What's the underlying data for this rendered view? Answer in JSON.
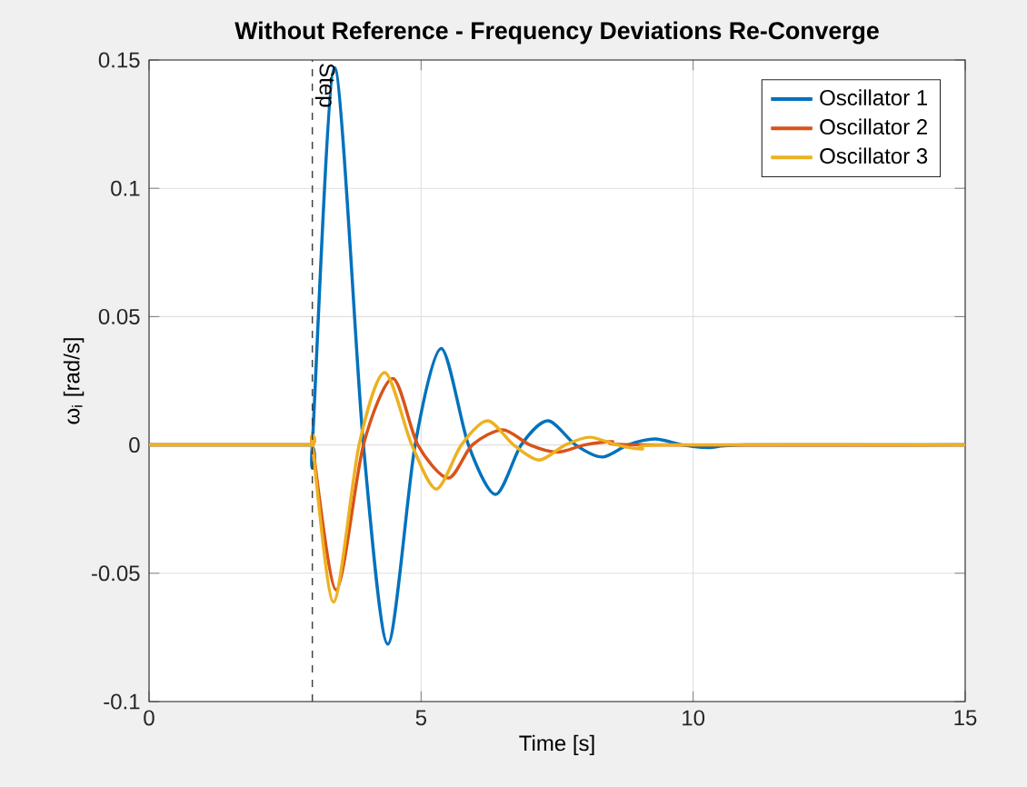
{
  "chart_data": {
    "type": "line",
    "title": "Without Reference - Frequency Deviations Re-Converge",
    "xlabel": "Time [s]",
    "ylabel": "ω$_{i}$ [rad/s]",
    "xlim": [
      0,
      15
    ],
    "ylim": [
      -0.1,
      0.15
    ],
    "xticks": [
      0,
      5,
      10,
      15
    ],
    "yticks": [
      -0.1,
      -0.05,
      0,
      0.05,
      0.1,
      0.15
    ],
    "grid": true,
    "legend": "top right",
    "marker": "none",
    "line_style": "solid",
    "ref_lines": [
      {
        "axis": "x",
        "value": 3,
        "label": "Step",
        "color": "#404040",
        "line_style": "dashed"
      }
    ],
    "series": [
      {
        "name": "Oscillator 1",
        "color": "#0072bd",
        "x": [
          0,
          1.5,
          2.95,
          3,
          3.41,
          3.94,
          4.39,
          4.89,
          5.37,
          5.87,
          6.37,
          6.84,
          7.33,
          7.84,
          8.33,
          8.8,
          9.3,
          9.8,
          10.3,
          11,
          15
        ],
        "values": [
          0,
          0,
          0,
          0,
          0.147,
          0,
          -0.0776,
          0,
          0.0376,
          0,
          -0.0193,
          0,
          0.0094,
          0,
          -0.0047,
          0,
          0.0023,
          0,
          -0.001,
          0,
          0
        ]
      },
      {
        "name": "Oscillator 2",
        "color": "#d95319",
        "x": [
          0,
          1.5,
          2.95,
          3,
          3.44,
          3.94,
          4.48,
          4.94,
          5.5,
          5.94,
          6.5,
          7.0,
          7.5,
          8.0,
          8.5,
          9.0,
          15
        ],
        "values": [
          0,
          0,
          0,
          0,
          -0.0565,
          0,
          0.0259,
          0,
          -0.0129,
          0,
          0.0059,
          0,
          -0.0028,
          0,
          0.0013,
          0,
          0
        ]
      },
      {
        "name": "Oscillator 3",
        "color": "#edb120",
        "x": [
          0,
          1.5,
          2.95,
          3,
          3.39,
          3.86,
          4.33,
          4.83,
          5.28,
          5.74,
          6.22,
          6.7,
          7.17,
          7.65,
          8.1,
          8.6,
          9.05,
          9.5,
          15
        ],
        "values": [
          0,
          0,
          0,
          0,
          -0.0612,
          0,
          0.0282,
          0,
          -0.0172,
          0,
          0.0094,
          0,
          -0.0059,
          0,
          0.003,
          0,
          -0.0016,
          0,
          0
        ]
      }
    ]
  }
}
